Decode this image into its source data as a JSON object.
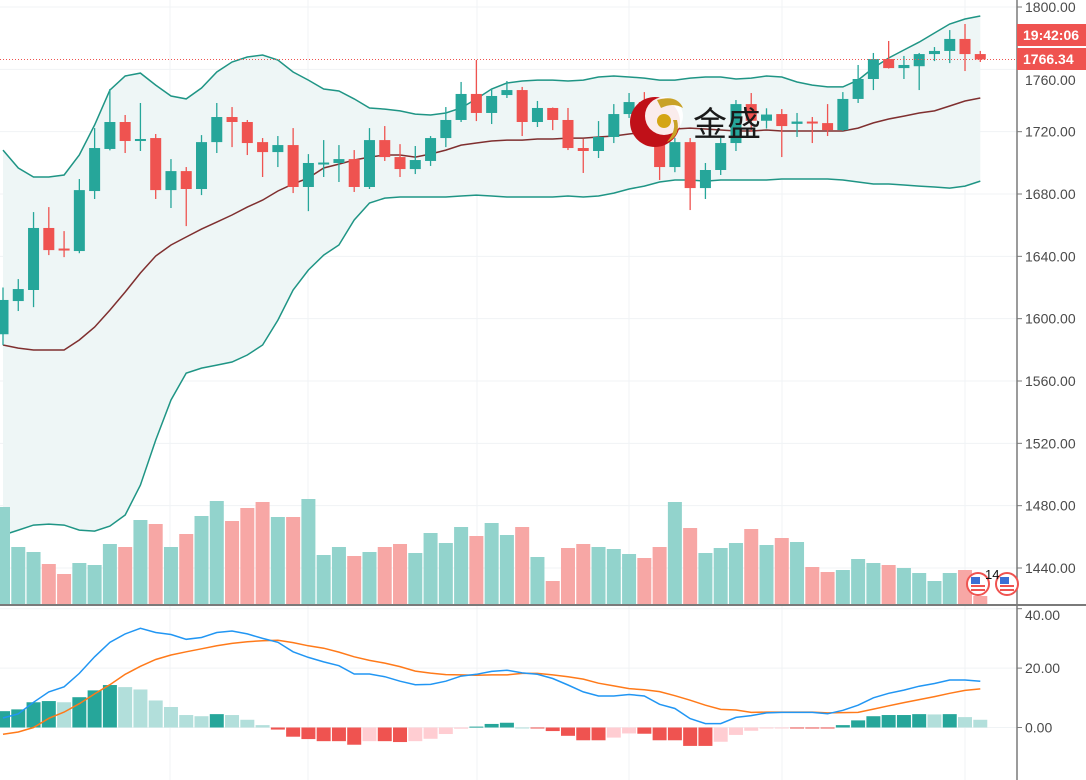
{
  "logo": {
    "text": "金盛"
  },
  "event_marker": {
    "count_label": "14",
    "icon": "us-flag-icon"
  },
  "colors": {
    "up": "#26a69a",
    "down": "#ef5350",
    "up_volume": "#92d3cc",
    "down_volume": "#f7a7a5",
    "band": "#1f9585",
    "band_fill": "#eef6f6",
    "basis": "#7f2f2f",
    "macd": "#2196f3",
    "signal": "#ff7a1a",
    "hist_up_strong": "#26a69a",
    "hist_up_weak": "#b2dfdb",
    "hist_down_strong": "#ef5350",
    "hist_down_weak": "#ffcdd2",
    "last_price": "#ef5350"
  },
  "last_price": {
    "value_label": "1766.34",
    "countdown_label": "19:42:06",
    "value": 1766.34
  },
  "chart_data": [
    {
      "type": "candlestick",
      "title": "",
      "ylim": [
        1440,
        1800
      ],
      "y_ticks": [
        "1800.00",
        "1760.00",
        "1720.00",
        "1680.00",
        "1640.00",
        "1600.00",
        "1560.00",
        "1520.00",
        "1480.00",
        "1440.00"
      ],
      "y_tick_values": [
        1800,
        1760,
        1720,
        1680,
        1640,
        1600,
        1560,
        1520,
        1480,
        1440
      ],
      "grid": true,
      "ohlc": [
        [
          1590,
          1620,
          1583,
          1612
        ],
        [
          1611.3,
          1625.4,
          1604.9,
          1619
        ],
        [
          1618.4,
          1668.4,
          1607.4,
          1658.2
        ],
        [
          1658.2,
          1671.6,
          1640.8,
          1644
        ],
        [
          1645,
          1656.2,
          1639.5,
          1644
        ],
        [
          1643.4,
          1689.6,
          1642,
          1682.5
        ],
        [
          1681.9,
          1722.3,
          1676.8,
          1709.5
        ],
        [
          1708.9,
          1747.4,
          1708,
          1726.2
        ],
        [
          1726.2,
          1730.7,
          1706.3,
          1714
        ],
        [
          1714,
          1738.4,
          1707.6,
          1715.3
        ],
        [
          1715.9,
          1718.5,
          1676.8,
          1682.5
        ],
        [
          1682.5,
          1702.4,
          1671,
          1694.7
        ],
        [
          1694.7,
          1697.3,
          1659.4,
          1683.2
        ],
        [
          1683.2,
          1717.8,
          1679.3,
          1713.3
        ],
        [
          1713.3,
          1738.4,
          1706.3,
          1729.4
        ],
        [
          1729.4,
          1735.8,
          1710.1,
          1726.2
        ],
        [
          1726.2,
          1727.5,
          1705,
          1712.7
        ],
        [
          1713.3,
          1715.9,
          1690.9,
          1706.9
        ],
        [
          1706.9,
          1717.2,
          1697.3,
          1711.4
        ],
        [
          1711.4,
          1722.3,
          1680.6,
          1684.5
        ],
        [
          1684.5,
          1705.6,
          1669,
          1699.9
        ],
        [
          1699.5,
          1714.6,
          1690.9,
          1700.2
        ],
        [
          1699.9,
          1711.4,
          1687.7,
          1702.4
        ],
        [
          1702.4,
          1708.2,
          1681.3,
          1684.5
        ],
        [
          1684.5,
          1722.3,
          1683.2,
          1714.6
        ],
        [
          1714.6,
          1723.6,
          1701.2,
          1703.7
        ],
        [
          1703.7,
          1712,
          1690.9,
          1696
        ],
        [
          1696,
          1710.8,
          1692.8,
          1701.8
        ],
        [
          1701.2,
          1717.2,
          1698,
          1715.9
        ],
        [
          1715.9,
          1735.8,
          1710.1,
          1727.5
        ],
        [
          1727.5,
          1751.9,
          1726.2,
          1744.2
        ],
        [
          1744.2,
          1766,
          1726.8,
          1732
        ],
        [
          1732,
          1747.4,
          1724.9,
          1742.9
        ],
        [
          1743.5,
          1752.5,
          1741.6,
          1746.7
        ],
        [
          1746.7,
          1748.7,
          1717.2,
          1726.2
        ],
        [
          1726.2,
          1739.7,
          1723,
          1735.2
        ],
        [
          1735.2,
          1735.5,
          1721,
          1727.5
        ],
        [
          1727.5,
          1735.2,
          1708.2,
          1709.5
        ],
        [
          1709.5,
          1715.3,
          1693.5,
          1707.6
        ],
        [
          1707.6,
          1726.8,
          1703.1,
          1716.6
        ],
        [
          1716.6,
          1737.7,
          1712.7,
          1731.3
        ],
        [
          1731.3,
          1744.8,
          1728.8,
          1739
        ],
        [
          1739,
          1745.4,
          1725,
          1730
        ],
        [
          1730,
          1735,
          1689,
          1697.3
        ],
        [
          1697.3,
          1716,
          1694,
          1713.3
        ],
        [
          1713.3,
          1715.9,
          1669.7,
          1683.8
        ],
        [
          1683.8,
          1699.9,
          1676.8,
          1695.4
        ],
        [
          1695.4,
          1715.9,
          1692.2,
          1712.7
        ],
        [
          1712.7,
          1740.3,
          1707.6,
          1737.7
        ],
        [
          1737.7,
          1744.8,
          1720,
          1727
        ],
        [
          1727,
          1735,
          1722,
          1731
        ],
        [
          1731.3,
          1734.5,
          1703.7,
          1723.6
        ],
        [
          1725,
          1732,
          1716.6,
          1726.5
        ],
        [
          1726.5,
          1729.4,
          1712.7,
          1725.5
        ],
        [
          1725.5,
          1737.7,
          1717.2,
          1721
        ],
        [
          1721,
          1745.4,
          1720.5,
          1741
        ],
        [
          1741,
          1762.8,
          1738.4,
          1753.8
        ],
        [
          1753.8,
          1770.5,
          1746.7,
          1766.6
        ],
        [
          1766.6,
          1778.2,
          1760.5,
          1760.8
        ],
        [
          1760.8,
          1768.6,
          1753.8,
          1762.8
        ],
        [
          1762,
          1770.5,
          1746.7,
          1769.8
        ],
        [
          1769.8,
          1774.3,
          1765.3,
          1771.8
        ],
        [
          1771.8,
          1785.2,
          1764,
          1779.5
        ],
        [
          1779.5,
          1789.1,
          1758.9,
          1769.8
        ],
        [
          1769.8,
          1771.8,
          1764.7,
          1766.34
        ]
      ],
      "bollinger_upper": [
        1708.2,
        1696.7,
        1690.9,
        1690.9,
        1692.2,
        1705,
        1724.3,
        1746.7,
        1755.7,
        1757.6,
        1749.9,
        1742.9,
        1741,
        1748,
        1758.3,
        1764.7,
        1767.9,
        1769.2,
        1766,
        1758.3,
        1753.1,
        1747.4,
        1746.1,
        1741,
        1735.2,
        1734.5,
        1733.3,
        1731.3,
        1730.7,
        1732,
        1735.2,
        1741,
        1747.4,
        1751.2,
        1752.5,
        1753.1,
        1753.1,
        1752.5,
        1753.1,
        1755.1,
        1755.7,
        1755.1,
        1754.4,
        1753.1,
        1753.1,
        1754.4,
        1755.1,
        1755.1,
        1753.8,
        1754.4,
        1755.7,
        1755.1,
        1751.9,
        1749.9,
        1748.7,
        1748.7,
        1753.1,
        1760.9,
        1767.3,
        1772.4,
        1777.5,
        1783.3,
        1789.1,
        1792.3,
        1794.2
      ],
      "bollinger_basis": [
        1583.1,
        1581.1,
        1579.9,
        1579.9,
        1579.9,
        1586.3,
        1594.6,
        1605.5,
        1617.1,
        1629.3,
        1640.2,
        1647.3,
        1652.4,
        1657.5,
        1662,
        1666.5,
        1671.6,
        1676.1,
        1681.9,
        1686.4,
        1690.3,
        1696.7,
        1699.2,
        1701.8,
        1703.7,
        1705,
        1705,
        1703.7,
        1705.7,
        1708.2,
        1711.4,
        1712.7,
        1714,
        1714.6,
        1714.6,
        1715.3,
        1715.3,
        1715.9,
        1715.9,
        1716.6,
        1717.2,
        1718.5,
        1719.8,
        1721.1,
        1721.7,
        1722.3,
        1721.7,
        1721.1,
        1720.4,
        1720.4,
        1721.1,
        1720.4,
        1720.4,
        1720.4,
        1720.4,
        1720.4,
        1722.3,
        1725.6,
        1728.1,
        1730,
        1732,
        1733.3,
        1736.5,
        1739.7,
        1741.6
      ],
      "bollinger_lower": [
        1461.1,
        1464.3,
        1467.5,
        1468.2,
        1467.5,
        1464.3,
        1463.7,
        1466.9,
        1474,
        1493.2,
        1522.1,
        1547.8,
        1565.1,
        1568.3,
        1570.2,
        1572.2,
        1576.7,
        1583.1,
        1599.1,
        1618.4,
        1631.2,
        1640.8,
        1647.3,
        1663.3,
        1674.2,
        1677.4,
        1678.1,
        1678.1,
        1678.1,
        1678.1,
        1678.7,
        1679.3,
        1678.7,
        1678.1,
        1678.1,
        1678.1,
        1678.1,
        1678.7,
        1678.1,
        1678.7,
        1680.6,
        1683.2,
        1685.1,
        1687.7,
        1689,
        1689,
        1688.3,
        1689,
        1689,
        1689,
        1689,
        1689.6,
        1689.6,
        1689.6,
        1689.6,
        1689,
        1687.7,
        1686.4,
        1686.4,
        1685.8,
        1685.1,
        1684.5,
        1683.8,
        1685.1,
        1688.3
      ],
      "volume": [
        97,
        57,
        52,
        40,
        30,
        41,
        39,
        60,
        57,
        84,
        80,
        57,
        70,
        88,
        103,
        83,
        96,
        102,
        87,
        87,
        105,
        49,
        57,
        48,
        52,
        57,
        60,
        51,
        71,
        61,
        77,
        68,
        81,
        69,
        77,
        47,
        23,
        56,
        60,
        57,
        55,
        50,
        46,
        57,
        102,
        76,
        51,
        56,
        61,
        75,
        59,
        66,
        62,
        37,
        32,
        34,
        45,
        41,
        39,
        36,
        31,
        23,
        31,
        34,
        8
      ]
    },
    {
      "type": "macd",
      "ylim": [
        -17,
        42
      ],
      "y_ticks": [
        "40.00",
        "20.00",
        "0.00"
      ],
      "y_tick_values": [
        40,
        20,
        0
      ],
      "macd": [
        3.2,
        4.6,
        8.5,
        12,
        13.7,
        18.2,
        23.8,
        28.7,
        31.5,
        33.4,
        32,
        31.3,
        29.7,
        30.3,
        32,
        32.5,
        31.5,
        30,
        28.7,
        25.5,
        23.6,
        22.1,
        20.8,
        18,
        18,
        17.1,
        15.6,
        14.4,
        14.5,
        15.6,
        17.3,
        17.9,
        18.9,
        19.3,
        18.4,
        17.9,
        16.5,
        14.3,
        12,
        10.6,
        10.6,
        11.1,
        10.6,
        7.8,
        6.4,
        3,
        1.3,
        1.3,
        3.4,
        4,
        4.9,
        5.1,
        5.1,
        5.1,
        4.6,
        5.8,
        7.5,
        10,
        11.5,
        12.6,
        13.9,
        14.8,
        16,
        16,
        15.6
      ],
      "signal": [
        -2.3,
        -1.5,
        0,
        3.1,
        5.2,
        8,
        11.3,
        14.4,
        17.9,
        20.6,
        22.9,
        24.4,
        25.5,
        26.5,
        27.5,
        28.3,
        28.9,
        29.2,
        29.4,
        28.6,
        27.5,
        26.7,
        25.4,
        23.8,
        22.6,
        21.7,
        20.5,
        19,
        18.3,
        17.8,
        17.7,
        17.6,
        17.7,
        17.7,
        18.2,
        18.2,
        17.7,
        17.1,
        16.3,
        14.9,
        14,
        13.1,
        12.7,
        12.1,
        10.7,
        9.2,
        7.5,
        6.1,
        5.9,
        5.1,
        5.2,
        5.2,
        5.2,
        5.2,
        4.9,
        5,
        5.1,
        6.2,
        7.3,
        8.4,
        9.4,
        10.4,
        11.5,
        12.5,
        13
      ],
      "histogram": [
        5.5,
        6.1,
        8.5,
        8.9,
        8.5,
        10.2,
        12.5,
        14.3,
        13.6,
        12.8,
        9.1,
        6.9,
        4.2,
        3.8,
        4.5,
        4.2,
        2.6,
        0.8,
        -0.7,
        -3.1,
        -3.9,
        -4.6,
        -4.6,
        -5.8,
        -4.6,
        -4.6,
        -4.9,
        -4.6,
        -3.8,
        -2.2,
        -0.4,
        0.3,
        1.2,
        1.6,
        0,
        -0.3,
        -1.2,
        -2.8,
        -4.3,
        -4.3,
        -3.4,
        -2,
        -2.1,
        -4.3,
        -4.3,
        -6.2,
        -6.2,
        -4.8,
        -2.5,
        -1.1,
        -0.3,
        -0.1,
        -0.1,
        -0.1,
        -0.3,
        0.8,
        2.4,
        3.8,
        4.2,
        4.2,
        4.5,
        4.4,
        4.5,
        3.5,
        2.6
      ]
    }
  ]
}
